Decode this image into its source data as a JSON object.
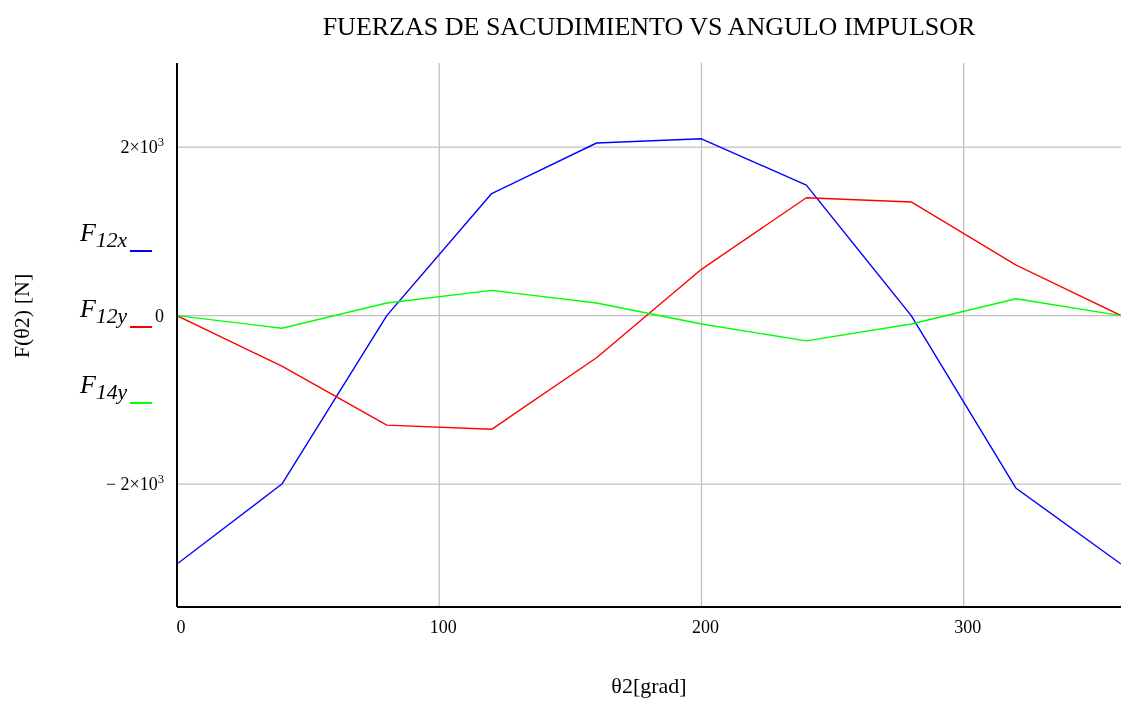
{
  "chart_data": {
    "type": "line",
    "title": "FUERZAS DE SACUDIMIENTO VS ANGULO IMPULSOR",
    "xlabel": "θ2[grad]",
    "ylabel": "F(θ2) [N]",
    "x": [
      0,
      40,
      80,
      120,
      160,
      200,
      240,
      280,
      320,
      360
    ],
    "series": [
      {
        "name": "F$_{12x}$",
        "color": "#0000ff",
        "values": [
          -2950,
          -2000,
          0,
          1450,
          2050,
          2100,
          1550,
          0,
          -2050,
          -2950
        ]
      },
      {
        "name": "F$_{12y}$",
        "color": "#ff0000",
        "values": [
          0,
          -600,
          -1300,
          -1350,
          -500,
          550,
          1400,
          1350,
          600,
          0
        ]
      },
      {
        "name": "F$_{14y}$",
        "color": "#00ff00",
        "values": [
          0,
          -150,
          150,
          300,
          150,
          -100,
          -300,
          -100,
          200,
          0
        ]
      }
    ],
    "xlim": [
      0,
      360
    ],
    "xticks": [
      0,
      100,
      200,
      300
    ],
    "ylim": [
      -3460,
      3000
    ],
    "yticks": [
      {
        "value": -2000,
        "label": "− 2×10$^{3}$"
      },
      0,
      {
        "value": 2000,
        "label": "2×10$^{3}$"
      }
    ],
    "grid": true,
    "legend": "left"
  }
}
